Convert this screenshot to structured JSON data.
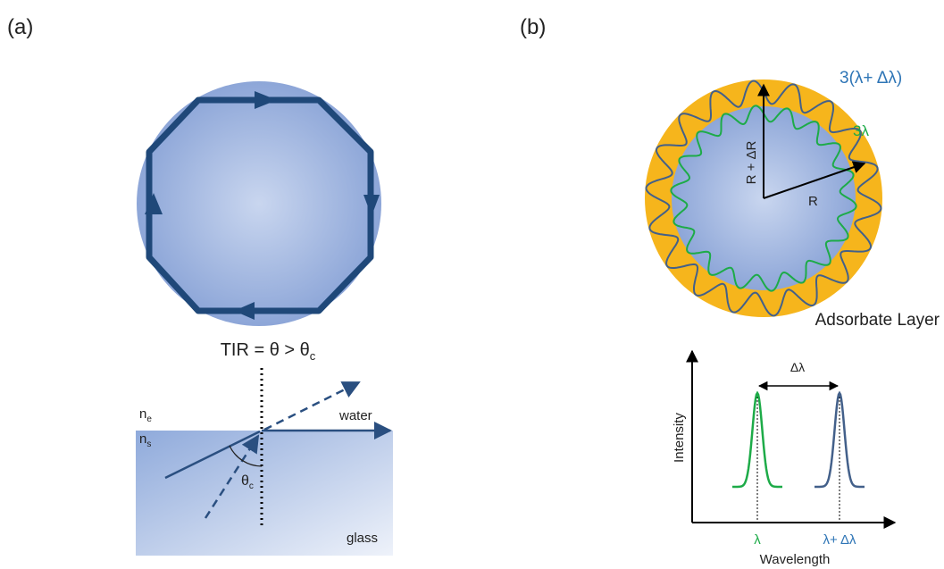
{
  "panel_a": {
    "label": "(a)",
    "tir": {
      "text": "TIR = θ > θ",
      "sub": "c"
    },
    "n_e": {
      "base": "n",
      "sub": "e"
    },
    "n_s": {
      "base": "n",
      "sub": "s"
    },
    "water": "water",
    "theta_c": {
      "base": "θ",
      "sub": "c"
    },
    "glass": "glass"
  },
  "panel_b": {
    "label": "(b)",
    "outer_wave": "3(λ+ Δλ)",
    "inner_wave": "3λ",
    "radius_outer": "R + ΔR",
    "radius": "R",
    "layer": "Adsorbate Layer",
    "plot": {
      "shift": "Δλ",
      "y_axis": "Intensity",
      "x_axis": "Wavelength",
      "peak_1": "λ",
      "peak_2": "λ+ Δλ"
    }
  }
}
